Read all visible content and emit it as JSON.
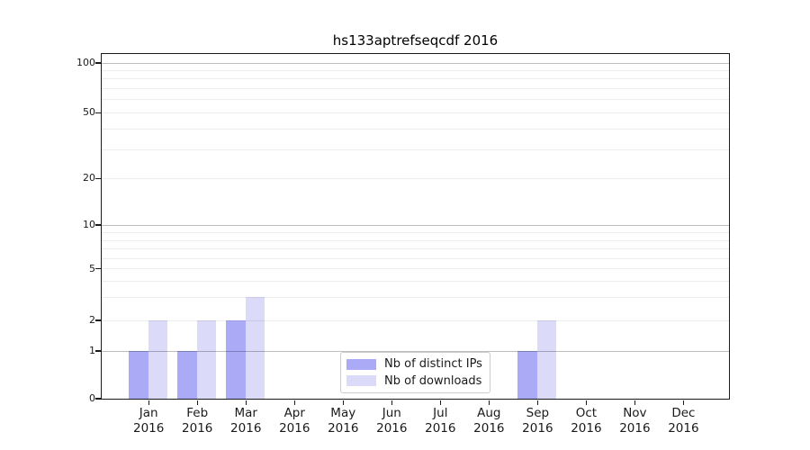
{
  "chart_data": {
    "type": "bar",
    "title": "hs133aptrefseqcdf 2016",
    "x_months": [
      "Jan",
      "Feb",
      "Mar",
      "Apr",
      "May",
      "Jun",
      "Jul",
      "Aug",
      "Sep",
      "Oct",
      "Nov",
      "Dec"
    ],
    "x_year": "2016",
    "series": [
      {
        "name": "Nb of distinct IPs",
        "color": "#aaaaf7",
        "values": [
          1,
          1,
          2,
          0,
          0,
          0,
          0,
          0,
          1,
          0,
          0,
          0
        ]
      },
      {
        "name": "Nb of downloads",
        "color": "#dcdaf9",
        "values": [
          2,
          2,
          3,
          0,
          0,
          0,
          0,
          0,
          2,
          0,
          0,
          0
        ]
      }
    ],
    "yticks": [
      0,
      1,
      2,
      5,
      10,
      20,
      50,
      100
    ],
    "ylim": [
      0,
      100
    ],
    "yscale": "log-like",
    "grid": "both",
    "legend": {
      "position": "inside-bottom-center",
      "entries": [
        "Nb of distinct IPs",
        "Nb of downloads"
      ]
    }
  }
}
